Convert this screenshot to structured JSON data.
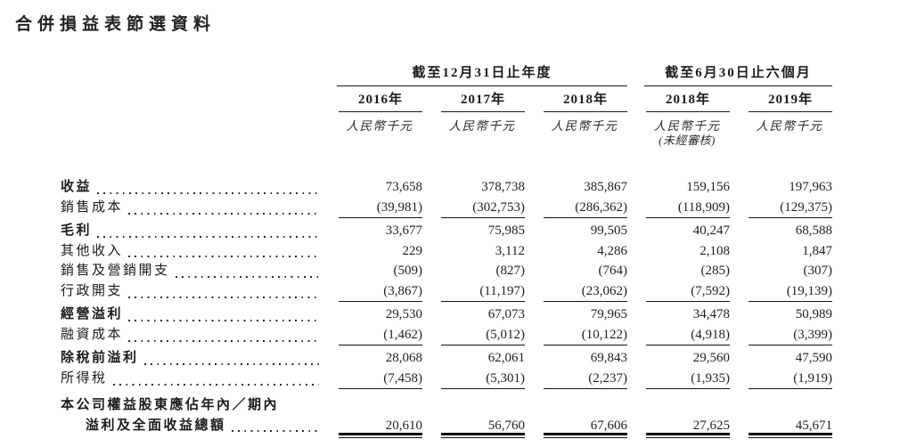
{
  "title": "合併損益表節選資料",
  "table": {
    "groups": [
      {
        "label": "截至12月31日止年度"
      },
      {
        "label": "截至6月30日止六個月"
      }
    ],
    "columns": [
      {
        "year": "2016年",
        "unit": "人民幣千元",
        "note": ""
      },
      {
        "year": "2017年",
        "unit": "人民幣千元",
        "note": ""
      },
      {
        "year": "2018年",
        "unit": "人民幣千元",
        "note": ""
      },
      {
        "year": "2018年",
        "unit": "人民幣千元",
        "note": "(未經審核)"
      },
      {
        "year": "2019年",
        "unit": "人民幣千元",
        "note": ""
      }
    ],
    "rows": [
      {
        "label": "收益",
        "bold": true,
        "values": [
          "73,658",
          "378,738",
          "385,867",
          "159,156",
          "197,963"
        ]
      },
      {
        "label": "銷售成本",
        "bold": false,
        "rule_below": true,
        "values": [
          "(39,981)",
          "(302,753)",
          "(286,362)",
          "(118,909)",
          "(129,375)"
        ]
      },
      {
        "label": "毛利",
        "bold": true,
        "gap_above": true,
        "values": [
          "33,677",
          "75,985",
          "99,505",
          "40,247",
          "68,588"
        ]
      },
      {
        "label": "其他收入",
        "bold": false,
        "values": [
          "229",
          "3,112",
          "4,286",
          "2,108",
          "1,847"
        ]
      },
      {
        "label": "銷售及營銷開支",
        "bold": false,
        "values": [
          "(509)",
          "(827)",
          "(764)",
          "(285)",
          "(307)"
        ]
      },
      {
        "label": "行政開支",
        "bold": false,
        "rule_below": true,
        "values": [
          "(3,867)",
          "(11,197)",
          "(23,062)",
          "(7,592)",
          "(19,139)"
        ]
      },
      {
        "label": "經營溢利",
        "bold": true,
        "gap_above": true,
        "values": [
          "29,530",
          "67,073",
          "79,965",
          "34,478",
          "50,989"
        ]
      },
      {
        "label": "融資成本",
        "bold": false,
        "rule_below": true,
        "values": [
          "(1,462)",
          "(5,012)",
          "(10,122)",
          "(4,918)",
          "(3,399)"
        ]
      },
      {
        "label": "除稅前溢利",
        "bold": true,
        "gap_above": true,
        "values": [
          "28,068",
          "62,061",
          "69,843",
          "29,560",
          "47,590"
        ]
      },
      {
        "label": "所得稅",
        "bold": false,
        "rule_below": true,
        "values": [
          "(7,458)",
          "(5,301)",
          "(2,237)",
          "(1,935)",
          "(1,919)"
        ]
      },
      {
        "label_lines": [
          "本公司權益股東應佔年內／期內",
          "溢利及全面收益總額"
        ],
        "bold": true,
        "big_gap_above": true,
        "double_rule_below": true,
        "values": [
          "20,610",
          "56,760",
          "67,606",
          "27,625",
          "45,671"
        ]
      }
    ]
  }
}
